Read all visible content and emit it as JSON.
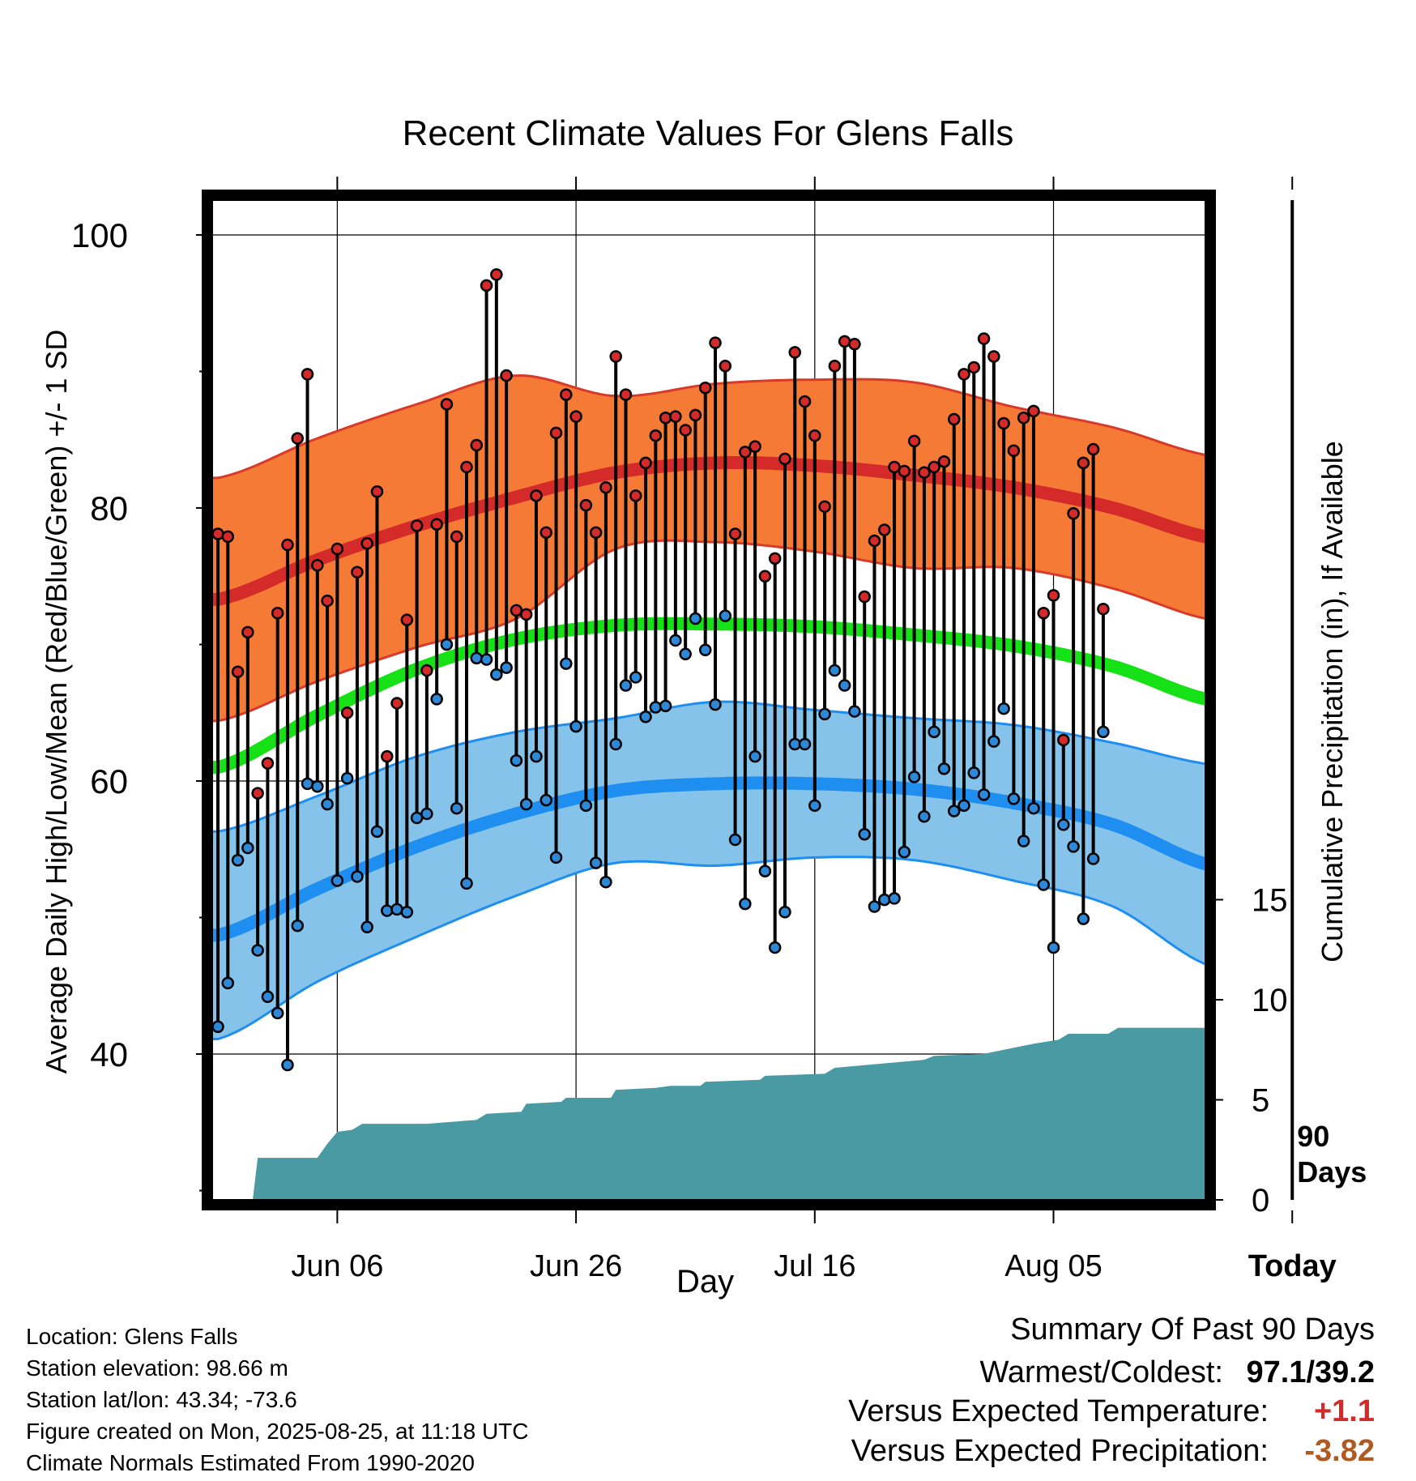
{
  "chart_data": {
    "type": "line",
    "title": "Recent Climate Values For Glens Falls",
    "xlabel": "Day",
    "ylabel_left": "Average Daily High/Low/Mean (Red/Blue/Green) +/- 1 SD",
    "ylabel_right": "Cumulative Precipitation (in), If Available",
    "x_tick_labels": [
      "Jun 06",
      "Jun 26",
      "Jul 16",
      "Aug 05",
      "Today"
    ],
    "y_tick_labels": [
      "40",
      "60",
      "80",
      "100"
    ],
    "y2_tick_labels": [
      "0",
      "5",
      "10",
      "15"
    ],
    "ylim": [
      29.7,
      102.5
    ],
    "y2lim": [
      0,
      48
    ],
    "today_label": "90 Days",
    "grid": true,
    "colors": {
      "high_normal": "#d42a2a",
      "high_band": "#f47a35",
      "low_normal": "#1e8ff0",
      "low_band": "#86c3ea",
      "mean_normal": "#16e016",
      "precip": "#4a9aa3",
      "high_point": "#d42a2a",
      "low_point": "#2d89d8"
    },
    "normals": {
      "days": [
        0,
        10,
        20,
        30,
        40,
        50,
        60,
        70,
        80,
        90,
        100
      ],
      "high_mean": [
        73.3,
        76.2,
        78.7,
        80.8,
        82.6,
        83.3,
        83.1,
        82.4,
        81.5,
        80.0,
        77.8
      ],
      "high_sd": [
        8.9,
        8.9,
        8.9,
        8.9,
        5.6,
        5.8,
        6.3,
        6.8,
        5.9,
        5.9,
        6.0
      ],
      "low_mean": [
        48.7,
        52.1,
        55.2,
        57.6,
        59.3,
        59.8,
        59.8,
        59.4,
        58.4,
        56.8,
        53.8
      ],
      "low_sd": [
        7.6,
        6.8,
        6.6,
        6.0,
        5.3,
        6.0,
        5.4,
        5.2,
        5.7,
        6.0,
        7.4
      ],
      "mean": [
        61.0,
        64.8,
        68.2,
        70.4,
        71.4,
        71.5,
        71.3,
        70.7,
        69.9,
        68.4,
        65.9
      ]
    },
    "daily": {
      "high": [
        78.1,
        77.9,
        68.0,
        70.9,
        59.1,
        61.3,
        72.3,
        77.3,
        85.1,
        89.8,
        75.8,
        73.2,
        77.0,
        65.0,
        75.3,
        77.4,
        81.2,
        61.8,
        65.7,
        71.8,
        78.7,
        68.1,
        78.8,
        87.6,
        77.9,
        83.0,
        84.6,
        96.3,
        97.1,
        89.7,
        72.5,
        72.2,
        80.9,
        78.2,
        85.5,
        88.3,
        86.7,
        80.2,
        78.2,
        81.5,
        91.1,
        88.3,
        80.9,
        83.3,
        85.3,
        86.6,
        86.7,
        85.7,
        86.8,
        88.8,
        92.1,
        90.4,
        78.1,
        84.1,
        84.5,
        75.0,
        76.3,
        83.6,
        91.4,
        87.8,
        85.3,
        80.1,
        90.4,
        92.2,
        92.0,
        73.5,
        77.6,
        78.4,
        83.0,
        82.7,
        84.9,
        82.6,
        83.0,
        83.4,
        86.5,
        89.8,
        90.3,
        92.4,
        91.1,
        86.2,
        84.2,
        86.6,
        87.1,
        72.3,
        73.6,
        63.0,
        79.6,
        83.3,
        84.3,
        72.6
      ],
      "low": [
        42.0,
        45.2,
        54.2,
        55.1,
        47.6,
        44.2,
        43.0,
        39.2,
        49.4,
        59.8,
        59.6,
        58.3,
        52.7,
        60.2,
        53.0,
        49.3,
        56.3,
        50.5,
        50.6,
        50.4,
        57.3,
        57.6,
        66.0,
        70.0,
        58.0,
        52.5,
        69.0,
        68.9,
        67.8,
        68.3,
        61.5,
        58.3,
        61.8,
        58.6,
        54.4,
        68.6,
        64.0,
        58.2,
        54.0,
        52.6,
        62.7,
        67.0,
        67.6,
        64.7,
        65.4,
        65.5,
        70.3,
        69.3,
        71.9,
        69.6,
        65.6,
        72.1,
        55.7,
        51.0,
        61.8,
        53.4,
        47.8,
        50.4,
        62.7,
        62.7,
        58.2,
        64.9,
        68.1,
        67.0,
        65.1,
        56.1,
        50.8,
        51.3,
        51.4,
        54.8,
        60.3,
        57.4,
        63.6,
        60.9,
        57.8,
        58.2,
        60.6,
        59.0,
        62.9,
        65.3,
        58.7,
        55.6,
        58.0,
        52.4,
        47.8,
        56.8,
        55.2,
        49.9,
        54.3,
        63.6
      ]
    },
    "precip": {
      "days": [
        0,
        3.5,
        4.0,
        10.0,
        11.0,
        12.0,
        13.5,
        14.5,
        21.0,
        26.0,
        27.0,
        30.5,
        31.0,
        34.5,
        35.0,
        39.5,
        40.0,
        44.0,
        45.5,
        48.5,
        49.0,
        54.5,
        55.0,
        61.0,
        62.0,
        71.0,
        72.0,
        77.0,
        78.0,
        81.0,
        82.0,
        84.5,
        85.5,
        89.5,
        90.5,
        100.5
      ],
      "cum": [
        0,
        0,
        2.1,
        2.1,
        2.8,
        3.4,
        3.5,
        3.8,
        3.8,
        4.0,
        4.3,
        4.4,
        4.8,
        4.9,
        5.1,
        5.1,
        5.5,
        5.6,
        5.7,
        5.7,
        5.9,
        6.0,
        6.2,
        6.3,
        6.6,
        7.0,
        7.2,
        7.3,
        7.4,
        7.7,
        7.8,
        8.0,
        8.3,
        8.3,
        8.6,
        8.6
      ]
    }
  },
  "footer": {
    "location": "Location: Glens Falls",
    "elevation": "Station elevation: 98.66 m",
    "latlon": "Station lat/lon: 43.34; -73.6",
    "created": "Figure created on Mon, 2025-08-25, at 11:18 UTC",
    "normals_period": "Climate Normals Estimated From 1990-2020"
  },
  "summary": {
    "heading": "Summary Of Past 90 Days",
    "warmest_coldest_label": "Warmest/Coldest:",
    "warmest_coldest_value": "97.1/39.2",
    "temp_label": "Versus Expected Temperature:",
    "temp_value": "+1.1",
    "temp_color": "#d42a2a",
    "precip_label": "Versus Expected Precipitation:",
    "precip_value": "-3.82",
    "precip_color": "#b05a22"
  }
}
